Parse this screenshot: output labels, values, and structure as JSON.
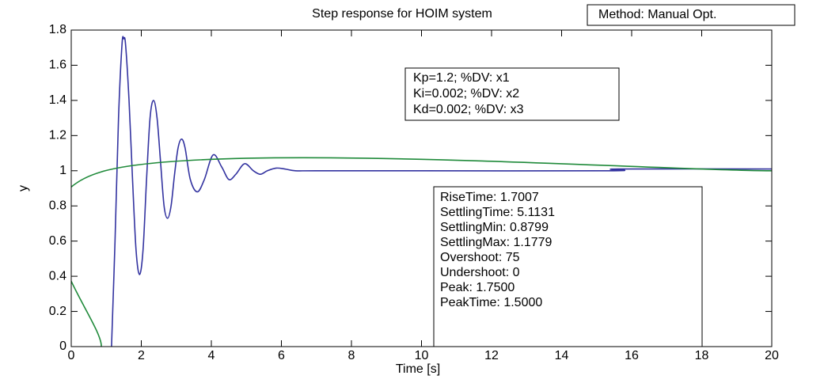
{
  "chart_data": {
    "type": "line",
    "title": "Step response for HOIM system",
    "method_label": "Method: Manual Opt.",
    "xlabel": "Time [s]",
    "ylabel": "y",
    "xlim": [
      0,
      20
    ],
    "ylim": [
      0,
      1.8
    ],
    "xticks": [
      0,
      2,
      4,
      6,
      8,
      10,
      12,
      14,
      16,
      18,
      20
    ],
    "yticks": [
      0,
      0.2,
      0.4,
      0.6,
      0.8,
      1,
      1.2,
      1.4,
      1.6,
      1.8
    ],
    "grid": false,
    "series": [
      {
        "color": "#3333a0",
        "x": [
          1.15,
          1.25,
          1.35,
          1.45,
          1.5,
          1.55,
          1.65,
          1.75,
          1.85,
          1.95,
          2.05,
          2.15,
          2.25,
          2.35,
          2.45,
          2.55,
          2.65,
          2.75,
          2.85,
          2.95,
          3.05,
          3.15,
          3.25,
          3.4,
          3.6,
          3.8,
          4.05,
          4.3,
          4.5,
          4.7,
          4.95,
          5.2,
          5.4,
          5.6,
          5.85,
          6.1,
          6.4,
          7,
          10,
          15.5,
          15.6,
          20
        ],
        "values": [
          0,
          0.6,
          1.3,
          1.72,
          1.75,
          1.72,
          1.4,
          0.95,
          0.55,
          0.41,
          0.55,
          0.95,
          1.3,
          1.4,
          1.3,
          1.05,
          0.8,
          0.73,
          0.8,
          0.98,
          1.13,
          1.18,
          1.13,
          0.95,
          0.88,
          0.95,
          1.09,
          1.02,
          0.95,
          0.98,
          1.04,
          1.0,
          0.98,
          1.0,
          1.015,
          1.01,
          1.0,
          1.0,
          1.0,
          1.0,
          1.01,
          1.01
        ]
      },
      {
        "color": "#1f8a3a",
        "x": [
          0.86,
          0.97,
          20
        ],
        "values": [
          0,
          1,
          1
        ]
      }
    ],
    "gains_annotation": [
      "Kp=1.2; %DV: x1",
      "Ki=0.002; %DV: x2",
      "Kd=0.002; %DV: x3"
    ],
    "stats_annotation": [
      "RiseTime: 1.7007",
      "SettlingTime: 5.1131",
      "SettlingMin: 0.8799",
      "SettlingMax: 1.1779",
      "Overshoot: 75",
      "Undershoot: 0",
      "Peak: 1.7500",
      "PeakTime: 1.5000"
    ]
  }
}
